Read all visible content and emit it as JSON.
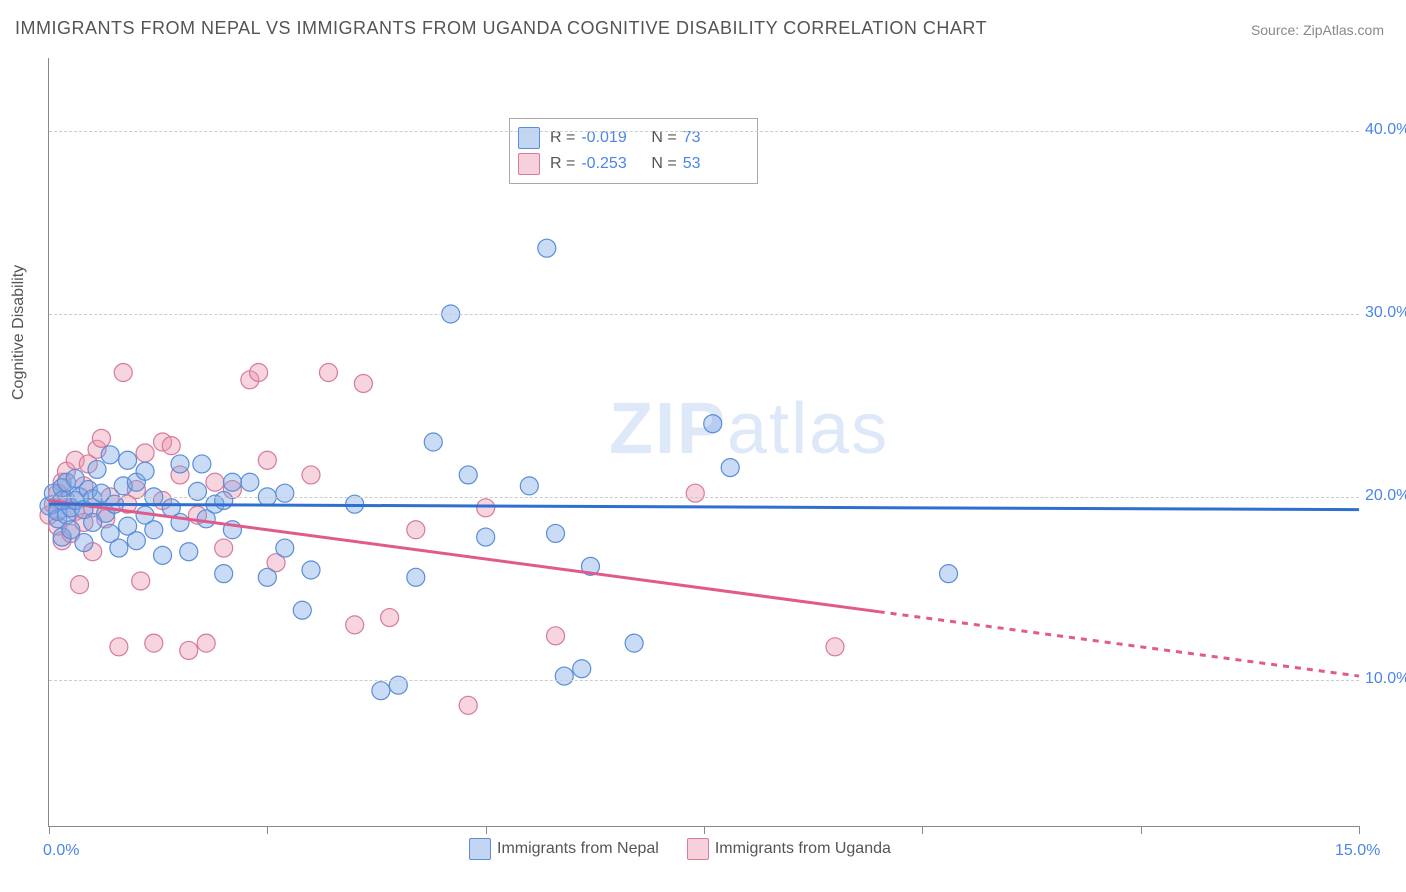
{
  "title": "IMMIGRANTS FROM NEPAL VS IMMIGRANTS FROM UGANDA COGNITIVE DISABILITY CORRELATION CHART",
  "source": "Source: ZipAtlas.com",
  "ylabel": "Cognitive Disability",
  "watermark1": "ZIP",
  "watermark2": "atlas",
  "chart": {
    "type": "scatter",
    "xlim": [
      0,
      15
    ],
    "ylim": [
      2,
      44
    ],
    "xticks": [
      0,
      2.5,
      5,
      7.5,
      10,
      12.5,
      15
    ],
    "xtick_labels_shown": {
      "0": "0.0%",
      "15": "15.0%"
    },
    "yticks": [
      10,
      20,
      30,
      40
    ],
    "ytick_labels": [
      "10.0%",
      "20.0%",
      "30.0%",
      "40.0%"
    ],
    "grid_color": "#cccccc",
    "background": "#ffffff",
    "marker_radius": 9,
    "marker_stroke_width": 1.2,
    "series": {
      "nepal": {
        "label": "Immigrants from Nepal",
        "fill": "rgba(120,165,230,0.40)",
        "stroke": "#5a8ed8",
        "R": "-0.019",
        "N": "73",
        "trend": {
          "y0": 19.6,
          "y1": 19.3,
          "solid_end_x": 15,
          "color": "#2f6fd0",
          "width": 3
        },
        "points": [
          [
            0.0,
            19.5
          ],
          [
            0.05,
            20.2
          ],
          [
            0.1,
            18.8
          ],
          [
            0.1,
            19.2
          ],
          [
            0.15,
            20.5
          ],
          [
            0.15,
            17.8
          ],
          [
            0.2,
            19.0
          ],
          [
            0.2,
            20.8
          ],
          [
            0.25,
            19.4
          ],
          [
            0.25,
            18.2
          ],
          [
            0.3,
            21.0
          ],
          [
            0.3,
            19.8
          ],
          [
            0.35,
            20.0
          ],
          [
            0.4,
            17.5
          ],
          [
            0.4,
            19.3
          ],
          [
            0.45,
            20.4
          ],
          [
            0.5,
            18.6
          ],
          [
            0.5,
            19.9
          ],
          [
            0.55,
            21.5
          ],
          [
            0.6,
            20.2
          ],
          [
            0.65,
            19.1
          ],
          [
            0.7,
            22.3
          ],
          [
            0.7,
            18.0
          ],
          [
            0.75,
            19.6
          ],
          [
            0.8,
            17.2
          ],
          [
            0.85,
            20.6
          ],
          [
            0.9,
            22.0
          ],
          [
            0.9,
            18.4
          ],
          [
            1.0,
            20.8
          ],
          [
            1.0,
            17.6
          ],
          [
            1.1,
            21.4
          ],
          [
            1.1,
            19.0
          ],
          [
            1.2,
            18.2
          ],
          [
            1.2,
            20.0
          ],
          [
            1.3,
            16.8
          ],
          [
            1.4,
            19.4
          ],
          [
            1.5,
            18.6
          ],
          [
            1.5,
            21.8
          ],
          [
            1.6,
            17.0
          ],
          [
            1.7,
            20.3
          ],
          [
            1.75,
            21.8
          ],
          [
            1.8,
            18.8
          ],
          [
            1.9,
            19.6
          ],
          [
            2.0,
            15.8
          ],
          [
            2.0,
            19.8
          ],
          [
            2.1,
            20.8
          ],
          [
            2.1,
            18.2
          ],
          [
            2.3,
            20.8
          ],
          [
            2.5,
            20.0
          ],
          [
            2.5,
            15.6
          ],
          [
            2.7,
            17.2
          ],
          [
            2.7,
            20.2
          ],
          [
            2.9,
            13.8
          ],
          [
            3.0,
            16.0
          ],
          [
            3.5,
            19.6
          ],
          [
            3.8,
            9.4
          ],
          [
            4.0,
            9.7
          ],
          [
            4.2,
            15.6
          ],
          [
            4.4,
            23.0
          ],
          [
            4.6,
            30.0
          ],
          [
            4.8,
            21.2
          ],
          [
            5.0,
            17.8
          ],
          [
            5.5,
            20.6
          ],
          [
            5.7,
            33.6
          ],
          [
            5.8,
            18.0
          ],
          [
            5.9,
            10.2
          ],
          [
            6.1,
            10.6
          ],
          [
            6.2,
            16.2
          ],
          [
            6.7,
            12.0
          ],
          [
            7.6,
            24.0
          ],
          [
            7.8,
            21.6
          ],
          [
            10.3,
            15.8
          ],
          [
            0.15,
            19.8
          ]
        ]
      },
      "uganda": {
        "label": "Immigrants from Uganda",
        "fill": "rgba(235,150,175,0.40)",
        "stroke": "#d87a9a",
        "R": "-0.253",
        "N": "53",
        "trend": {
          "y0": 19.8,
          "y1": 10.2,
          "solid_end_x": 9.5,
          "color": "#e05a8c",
          "width": 3
        },
        "points": [
          [
            0.0,
            19.0
          ],
          [
            0.05,
            19.6
          ],
          [
            0.1,
            20.2
          ],
          [
            0.1,
            18.4
          ],
          [
            0.15,
            17.6
          ],
          [
            0.15,
            20.8
          ],
          [
            0.2,
            19.8
          ],
          [
            0.2,
            21.4
          ],
          [
            0.25,
            18.0
          ],
          [
            0.3,
            22.0
          ],
          [
            0.3,
            19.2
          ],
          [
            0.35,
            15.2
          ],
          [
            0.4,
            20.6
          ],
          [
            0.4,
            18.6
          ],
          [
            0.45,
            21.8
          ],
          [
            0.5,
            17.0
          ],
          [
            0.5,
            19.4
          ],
          [
            0.55,
            22.6
          ],
          [
            0.6,
            23.2
          ],
          [
            0.65,
            18.8
          ],
          [
            0.7,
            20.0
          ],
          [
            0.8,
            11.8
          ],
          [
            0.85,
            26.8
          ],
          [
            0.9,
            19.6
          ],
          [
            1.0,
            20.4
          ],
          [
            1.05,
            15.4
          ],
          [
            1.1,
            22.4
          ],
          [
            1.2,
            12.0
          ],
          [
            1.3,
            23.0
          ],
          [
            1.3,
            19.8
          ],
          [
            1.4,
            22.8
          ],
          [
            1.5,
            21.2
          ],
          [
            1.6,
            11.6
          ],
          [
            1.7,
            19.0
          ],
          [
            1.8,
            12.0
          ],
          [
            1.9,
            20.8
          ],
          [
            2.0,
            17.2
          ],
          [
            2.1,
            20.4
          ],
          [
            2.3,
            26.4
          ],
          [
            2.4,
            26.8
          ],
          [
            2.6,
            16.4
          ],
          [
            3.0,
            21.2
          ],
          [
            3.2,
            26.8
          ],
          [
            3.5,
            13.0
          ],
          [
            3.6,
            26.2
          ],
          [
            3.9,
            13.4
          ],
          [
            4.2,
            18.2
          ],
          [
            4.8,
            8.6
          ],
          [
            5.0,
            19.4
          ],
          [
            5.8,
            12.4
          ],
          [
            7.4,
            20.2
          ],
          [
            9.0,
            11.8
          ],
          [
            2.5,
            22.0
          ]
        ]
      }
    }
  },
  "legend_top": {
    "R_label": "R =",
    "N_label": "N ="
  }
}
